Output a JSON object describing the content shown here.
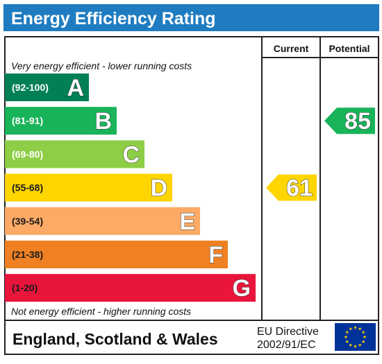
{
  "title": "Energy Efficiency Rating",
  "header": {
    "current": "Current",
    "potential": "Potential"
  },
  "top_note": "Very energy efficient - lower running costs",
  "bottom_note": "Not energy efficient - higher running costs",
  "bands": [
    {
      "range": "(92-100)",
      "letter": "A",
      "color": "#008054",
      "range_color": "#ffffff"
    },
    {
      "range": "(81-91)",
      "letter": "B",
      "color": "#19b459",
      "range_color": "#ffffff"
    },
    {
      "range": "(69-80)",
      "letter": "C",
      "color": "#8dce46",
      "range_color": "#ffffff"
    },
    {
      "range": "(55-68)",
      "letter": "D",
      "color": "#ffd500",
      "range_color": "#1a1a1a"
    },
    {
      "range": "(39-54)",
      "letter": "E",
      "color": "#fcaa65",
      "range_color": "#1a1a1a"
    },
    {
      "range": "(21-38)",
      "letter": "F",
      "color": "#ef8023",
      "range_color": "#1a1a1a"
    },
    {
      "range": "(1-20)",
      "letter": "G",
      "color": "#e9153b",
      "range_color": "#1a1a1a"
    }
  ],
  "ratings": {
    "current": {
      "value": "61",
      "band": "D",
      "color": "#ffd500"
    },
    "potential": {
      "value": "85",
      "band": "B",
      "color": "#19b459"
    }
  },
  "footer": {
    "region": "England, Scotland & Wales",
    "directive_line1": "EU Directive",
    "directive_line2": "2002/91/EC"
  },
  "colors": {
    "title_bar": "#1f7cc1",
    "eu_flag": "#003399",
    "eu_stars": "#ffcc00"
  },
  "icons": {
    "eu_flag": "eu-flag-icon"
  }
}
